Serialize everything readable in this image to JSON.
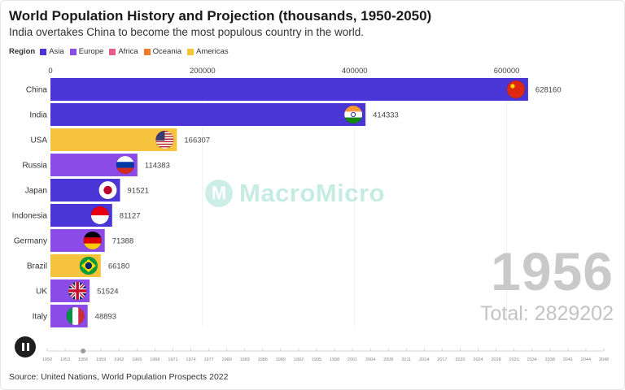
{
  "header": {
    "title": "World Population History and Projection (thousands, 1950-2050)",
    "subtitle": "India overtakes China to become the most populous country in the world."
  },
  "legend": {
    "title": "Region",
    "items": [
      {
        "label": "Asia",
        "color": "#4a36d6"
      },
      {
        "label": "Europe",
        "color": "#8c4be6"
      },
      {
        "label": "Africa",
        "color": "#e85a8a"
      },
      {
        "label": "Oceania",
        "color": "#f07a2a"
      },
      {
        "label": "Americas",
        "color": "#f5c43c"
      }
    ]
  },
  "watermark": {
    "logo": "M",
    "text": "MacroMicro"
  },
  "timeline": {
    "year": "1956",
    "total": "Total: 2829202",
    "ticks": [
      "1950",
      "1953",
      "1956",
      "1959",
      "1962",
      "1965",
      "1968",
      "1971",
      "1974",
      "1977",
      "1980",
      "1983",
      "1986",
      "1989",
      "1992",
      "1995",
      "1998",
      "2001",
      "2004",
      "2008",
      "2011",
      "2014",
      "2017",
      "2020",
      "2024",
      "2028",
      "2031",
      "2034",
      "2038",
      "2041",
      "2044",
      "2048"
    ],
    "control_icon": "pause-icon"
  },
  "source": "Source: United Nations, World Population Prospects 2022",
  "chart_data": {
    "type": "bar",
    "orientation": "horizontal",
    "title": "World Population History and Projection (thousands, 1950-2050)",
    "xlim": [
      0,
      640000
    ],
    "xticks": [
      0,
      200000,
      400000,
      600000
    ],
    "xtick_labels": [
      "0",
      "200000",
      "400000",
      "600000"
    ],
    "categories": [
      "China",
      "India",
      "USA",
      "Russia",
      "Japan",
      "Indonesia",
      "Germany",
      "Brazil",
      "UK",
      "Italy"
    ],
    "values": [
      628160,
      414333,
      166307,
      114383,
      91521,
      81127,
      71388,
      66180,
      51524,
      48893
    ],
    "value_labels": [
      "628160",
      "414333",
      "166307",
      "114383",
      "91521",
      "81127",
      "71388",
      "66180",
      "51524",
      "48893"
    ],
    "regions": [
      "Asia",
      "Asia",
      "Americas",
      "Europe",
      "Asia",
      "Asia",
      "Europe",
      "Americas",
      "Europe",
      "Europe"
    ],
    "flags": [
      "china-flag",
      "india-flag",
      "usa-flag",
      "russia-flag",
      "japan-flag",
      "indonesia-flag",
      "germany-flag",
      "brazil-flag",
      "uk-flag",
      "italy-flag"
    ]
  }
}
